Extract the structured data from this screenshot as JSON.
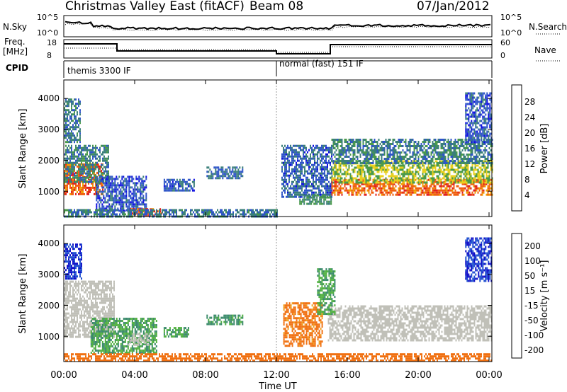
{
  "header": {
    "station": "Christmas Valley East (fitACF)",
    "beam": "Beam 08",
    "date": "07/Jan/2012"
  },
  "strip_panels": {
    "nsky_label": "N.Sky",
    "nsky_ticks": [
      "10^5",
      "10^0"
    ],
    "nsearch_label": "N.Search",
    "nsearch_ticks": [
      "10^5",
      "10^0"
    ],
    "freq_label_top": "Freq.",
    "freq_label_bottom": "[MHz]",
    "freq_ticks": [
      "18",
      "8"
    ],
    "nave_label": "Nave",
    "nave_ticks": [
      "60",
      "0"
    ],
    "cpid_label": "CPID",
    "cpid_segments": [
      {
        "label": "themis 3300 IF",
        "start_hour": 0
      },
      {
        "label": "normal (fast) 151 IF",
        "start_hour": 12
      }
    ]
  },
  "axes": {
    "xlabel": "Time UT",
    "x_ticks": [
      "00:00",
      "04:00",
      "08:00",
      "12:00",
      "16:00",
      "20:00",
      "00:00"
    ],
    "ylabel": "Slant Range [km]",
    "y_ticks": [
      "1000",
      "2000",
      "3000",
      "4000"
    ]
  },
  "power_scale": {
    "label": "Power [dB]",
    "ticks": [
      "4",
      "8",
      "12",
      "16",
      "20",
      "24",
      "28"
    ],
    "colors": [
      "#1010e0",
      "#2f55c8",
      "#3a7f7a",
      "#4a9a4a",
      "#e8d020",
      "#f0a000",
      "#f06010",
      "#e02020"
    ]
  },
  "velocity_scale": {
    "label": "Velocity [m s⁻¹]",
    "ticks": [
      "200",
      "100",
      "50",
      "15",
      "-15",
      "-50",
      "-100",
      "-200"
    ],
    "colors": [
      "#1010c8",
      "#2050d0",
      "#3a8a6a",
      "#50b040",
      "#c0c0b8",
      "#f0a020",
      "#f07010",
      "#f03010",
      "#e00000"
    ]
  },
  "chart_data": [
    {
      "type": "heatmap",
      "name": "Power",
      "x_unit": "hours UT",
      "y_unit": "km",
      "xlim": [
        0,
        24
      ],
      "ylim": [
        180,
        4600
      ],
      "regions": [
        {
          "x": [
            0.0,
            2.2
          ],
          "y": [
            900,
            1900
          ],
          "value": 26
        },
        {
          "x": [
            0.0,
            2.5
          ],
          "y": [
            1300,
            2500
          ],
          "value": 10
        },
        {
          "x": [
            0.0,
            0.9
          ],
          "y": [
            2600,
            4000
          ],
          "value": 9
        },
        {
          "x": [
            1.8,
            4.6
          ],
          "y": [
            400,
            1500
          ],
          "value": 6
        },
        {
          "x": [
            3.7,
            5.5
          ],
          "y": [
            200,
            450
          ],
          "value": 27
        },
        {
          "x": [
            0.0,
            12.0
          ],
          "y": [
            200,
            420
          ],
          "value": 9
        },
        {
          "x": [
            5.6,
            7.3
          ],
          "y": [
            1000,
            1400
          ],
          "value": 7
        },
        {
          "x": [
            8.0,
            10.0
          ],
          "y": [
            1400,
            1800
          ],
          "value": 8
        },
        {
          "x": [
            12.2,
            15.0
          ],
          "y": [
            800,
            2500
          ],
          "value": 7
        },
        {
          "x": [
            13.2,
            15.0
          ],
          "y": [
            600,
            900
          ],
          "value": 12
        },
        {
          "x": [
            15.0,
            24.0
          ],
          "y": [
            900,
            1400
          ],
          "value": 26
        },
        {
          "x": [
            15.0,
            24.0
          ],
          "y": [
            1300,
            2000
          ],
          "value": 16
        },
        {
          "x": [
            15.0,
            24.0
          ],
          "y": [
            1900,
            2700
          ],
          "value": 10
        },
        {
          "x": [
            22.5,
            24.0
          ],
          "y": [
            2600,
            4200
          ],
          "value": 6
        }
      ]
    },
    {
      "type": "heatmap",
      "name": "Velocity",
      "x_unit": "hours UT",
      "y_unit": "km",
      "xlim": [
        0,
        24
      ],
      "ylim": [
        180,
        4600
      ],
      "regions": [
        {
          "x": [
            0.0,
            2.8
          ],
          "y": [
            1000,
            2800
          ],
          "value": 0
        },
        {
          "x": [
            0.0,
            1.0
          ],
          "y": [
            2900,
            4000
          ],
          "value": 150
        },
        {
          "x": [
            1.5,
            5.2
          ],
          "y": [
            500,
            1600
          ],
          "value": 30
        },
        {
          "x": [
            3.6,
            4.8
          ],
          "y": [
            700,
            1100
          ],
          "value": 0
        },
        {
          "x": [
            0.0,
            12.0
          ],
          "y": [
            200,
            450
          ],
          "value": -80
        },
        {
          "x": [
            8.0,
            10.0
          ],
          "y": [
            1400,
            1700
          ],
          "value": 40
        },
        {
          "x": [
            5.6,
            7.0
          ],
          "y": [
            1000,
            1300
          ],
          "value": 30
        },
        {
          "x": [
            12.0,
            24.0
          ],
          "y": [
            200,
            450
          ],
          "value": -70
        },
        {
          "x": [
            12.3,
            14.5
          ],
          "y": [
            700,
            2100
          ],
          "value": -60
        },
        {
          "x": [
            14.8,
            24.0
          ],
          "y": [
            900,
            2000
          ],
          "value": 0
        },
        {
          "x": [
            14.2,
            15.2
          ],
          "y": [
            1700,
            3200
          ],
          "value": 30
        },
        {
          "x": [
            22.5,
            24.0
          ],
          "y": [
            2800,
            4200
          ],
          "value": 150
        }
      ]
    }
  ]
}
